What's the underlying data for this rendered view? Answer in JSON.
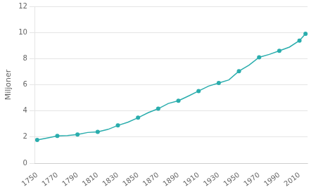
{
  "chart_data": {
    "type": "line",
    "ylabel": "Miljoner",
    "x": [
      1750,
      1760,
      1770,
      1780,
      1790,
      1800,
      1810,
      1820,
      1830,
      1840,
      1850,
      1860,
      1870,
      1880,
      1890,
      1900,
      1910,
      1920,
      1930,
      1940,
      1950,
      1960,
      1970,
      1980,
      1990,
      2000,
      2010,
      2016
    ],
    "series": [
      {
        "type": "line",
        "marker": "none",
        "color": "#2aadad",
        "values": [
          1.78,
          1.93,
          2.09,
          2.12,
          2.19,
          2.35,
          2.4,
          2.58,
          2.89,
          3.14,
          3.48,
          3.86,
          4.17,
          4.57,
          4.78,
          5.14,
          5.52,
          5.9,
          6.14,
          6.37,
          7.04,
          7.5,
          8.1,
          8.32,
          8.6,
          8.88,
          9.38,
          9.9
        ]
      },
      {
        "type": "scatter",
        "marker": "circle",
        "color": "#2aadad",
        "x": [
          1750,
          1770,
          1790,
          1810,
          1830,
          1850,
          1870,
          1890,
          1910,
          1930,
          1950,
          1970,
          1990,
          2010,
          2016
        ],
        "values": [
          1.78,
          2.09,
          2.19,
          2.4,
          2.89,
          3.48,
          4.17,
          4.78,
          5.52,
          6.14,
          7.04,
          8.1,
          8.6,
          9.38,
          9.9
        ]
      }
    ],
    "xlim": [
      1748,
      2018
    ],
    "xticks": [
      1750,
      1770,
      1790,
      1810,
      1830,
      1850,
      1870,
      1890,
      1910,
      1930,
      1950,
      1970,
      1990,
      2010
    ],
    "ylim": [
      0,
      12
    ],
    "yticks": [
      0,
      2,
      4,
      6,
      8,
      10,
      12
    ],
    "grid": "y"
  }
}
